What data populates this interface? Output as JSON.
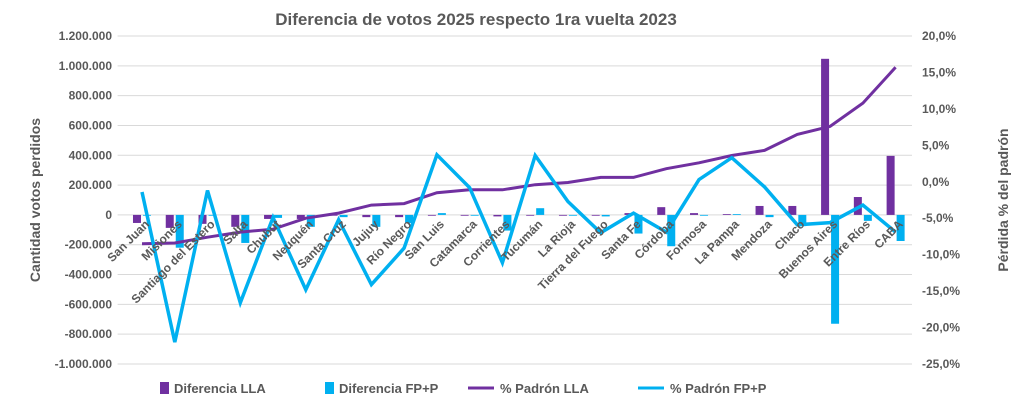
{
  "chart_data": {
    "type": "bar+line",
    "title": "Diferencia de votos 2025 respecto 1ra vuelta 2023",
    "ylabel": "Cantidad votos perdidos",
    "y2label": "Pérdida % del padrón",
    "ylim": [
      -1000000,
      1200000
    ],
    "y2lim": [
      -25,
      20
    ],
    "yticks": [
      "1.200.000",
      "1.000.000",
      "800.000",
      "600.000",
      "400.000",
      "200.000",
      "0",
      "-200.000",
      "-400.000",
      "-600.000",
      "-800.000",
      "-1.000.000"
    ],
    "y2ticks": [
      "20,0%",
      "15,0%",
      "10,0%",
      "5,0%",
      "0,0%",
      "-5,0%",
      "-10,0%",
      "-15,0%",
      "-20,0%",
      "-25,0%"
    ],
    "grid": true,
    "legend": "bottom",
    "categories": [
      "San Juan",
      "Misiones",
      "Santiago del Estero",
      "Salta",
      "Chubut",
      "Neuquén",
      "Santa Cruz",
      "Jujuy",
      "Río Negro",
      "San Luis",
      "Catamarca",
      "Corrientes",
      "Tucumán",
      "La Rioja",
      "Tierra del Fuego",
      "Santa Fe",
      "Córdoba",
      "Formosa",
      "La Pampa",
      "Mendoza",
      "Chaco",
      "Buenos Aires",
      "Entre Ríos",
      "CABA"
    ],
    "series": [
      {
        "name": "Diferencia LLA",
        "type": "bar",
        "axis": "left",
        "color": "#7030A0",
        "values": [
          -54000,
          -87000,
          -60000,
          -80000,
          -27000,
          -27000,
          -5000,
          -15000,
          -15000,
          -3000,
          0,
          -10000,
          0,
          0,
          0,
          12000,
          52000,
          12000,
          5000,
          60000,
          60000,
          1047000,
          120000,
          396000
        ]
      },
      {
        "name": "Diferencia FP+P",
        "type": "bar",
        "axis": "left",
        "color": "#00B0F0",
        "values": [
          0,
          -220000,
          0,
          -188000,
          -20000,
          -80000,
          -15000,
          -80000,
          -55000,
          12000,
          0,
          -105000,
          45000,
          0,
          -10000,
          -125000,
          -210000,
          0,
          5000,
          -15000,
          -75000,
          -730000,
          -40000,
          -175000
        ]
      },
      {
        "name": "% Padrón LLA",
        "type": "line",
        "axis": "right",
        "color": "#7030A0",
        "values": [
          -8.5,
          -8.4,
          -7.6,
          -6.9,
          -6.5,
          -5.0,
          -4.3,
          -3.2,
          -3.0,
          -1.5,
          -1.1,
          -1.1,
          -0.4,
          -0.1,
          0.6,
          0.6,
          1.8,
          2.6,
          3.6,
          4.3,
          6.5,
          7.6,
          10.8,
          15.7
        ]
      },
      {
        "name": "% Padrón FP+P",
        "type": "line",
        "axis": "right",
        "color": "#00B0F0",
        "values": [
          -1.4,
          -22.0,
          -1.2,
          -16.6,
          -4.9,
          -14.8,
          -5.2,
          -14.1,
          -9.1,
          3.7,
          -0.8,
          -11.1,
          3.6,
          -2.7,
          -7.0,
          -4.3,
          -6.9,
          0.3,
          3.3,
          -0.7,
          -5.9,
          -5.6,
          -3.2,
          -6.9
        ]
      }
    ]
  }
}
